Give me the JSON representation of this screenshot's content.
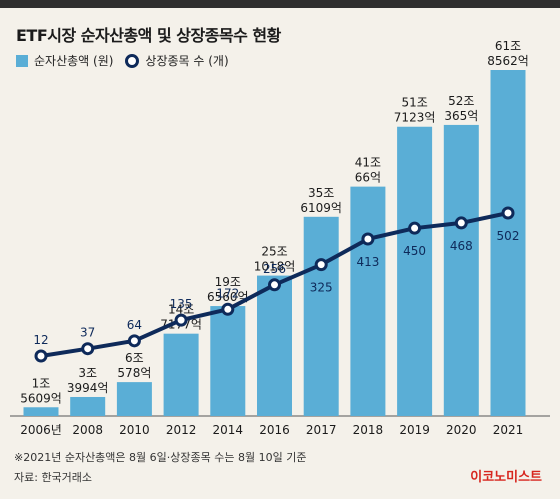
{
  "chart_data": {
    "type": "bar",
    "title": "ETF시장 순자산총액 및 상장종목수 현황",
    "categories": [
      "2006년",
      "2008",
      "2010",
      "2012",
      "2014",
      "2016",
      "2017",
      "2018",
      "2019",
      "2020",
      "2021"
    ],
    "series": [
      {
        "name": "순자산총액 (원)",
        "type": "bar",
        "values_trillion_won": [
          1.5609,
          3.3994,
          6.0578,
          14.7177,
          19.656,
          25.1018,
          35.6109,
          41.0066,
          51.7123,
          52.0365,
          61.8562
        ],
        "labels": [
          [
            "1조",
            "5609억"
          ],
          [
            "3조",
            "3994억"
          ],
          [
            "6조",
            "578억"
          ],
          [
            "14조",
            "7177억"
          ],
          [
            "19조",
            "6560억"
          ],
          [
            "25조",
            "1018억"
          ],
          [
            "35조",
            "6109억"
          ],
          [
            "41조",
            "66억"
          ],
          [
            "51조",
            "7123억"
          ],
          [
            "52조",
            "365억"
          ],
          [
            "61조",
            "8562억"
          ]
        ],
        "color": "#5aaed6"
      },
      {
        "name": "상장종목 수 (개)",
        "type": "line",
        "values": [
          12,
          37,
          64,
          135,
          172,
          256,
          325,
          413,
          450,
          468,
          502
        ],
        "color": "#0e2a5a"
      }
    ],
    "grid": false,
    "legend_position": "top-left"
  },
  "note": "※2021년 순자산총액은 8월 6일·상장종목 수는 8월 10일 기준",
  "source": "자료: 한국거래소",
  "brand": "이코노미스트"
}
